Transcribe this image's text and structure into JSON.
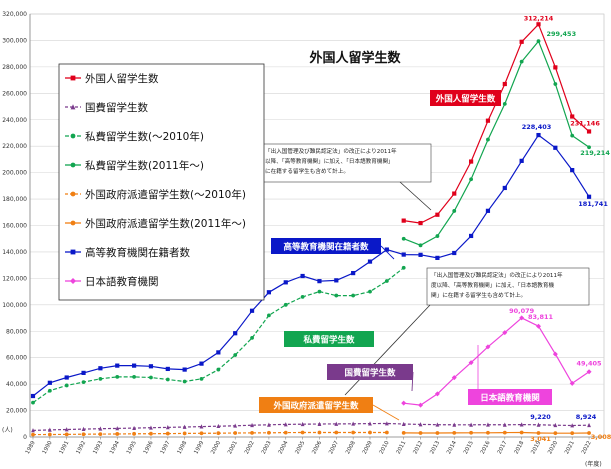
{
  "chart_data": {
    "type": "line",
    "title": "外国人留学生数",
    "y_unit": "(人)",
    "x_unit": "(年度)",
    "ylim": [
      0,
      320000
    ],
    "y_ticks": [
      0,
      20000,
      40000,
      60000,
      80000,
      100000,
      120000,
      140000,
      160000,
      180000,
      200000,
      220000,
      240000,
      260000,
      280000,
      300000,
      320000
    ],
    "y_tick_labels": [
      "0",
      "20,000",
      "40,000",
      "60,000",
      "80,000",
      "100,000",
      "120,000",
      "140,000",
      "160,000",
      "180,000",
      "200,000",
      "220,000",
      "240,000",
      "260,000",
      "280,000",
      "300,000",
      "320,000"
    ],
    "x": [
      1989,
      1990,
      1991,
      1992,
      1993,
      1994,
      1995,
      1996,
      1997,
      1998,
      1999,
      2000,
      2001,
      2002,
      2003,
      2004,
      2005,
      2006,
      2007,
      2008,
      2009,
      2010,
      2011,
      2012,
      2013,
      2014,
      2015,
      2016,
      2017,
      2018,
      2019,
      2020,
      2021,
      2022
    ],
    "x_tick_labels": [
      "1989",
      "1990",
      "1991",
      "1992",
      "1993",
      "1994",
      "1995",
      "1996",
      "1997",
      "1998",
      "1999",
      "2000",
      "2001",
      "2002",
      "2003",
      "2004",
      "2005",
      "2006",
      "2007",
      "2008",
      "2009",
      "2010",
      "2011",
      "2012",
      "2013",
      "2014",
      "2015",
      "2016",
      "2017",
      "2018",
      "2019",
      "2020",
      "2021",
      "2022"
    ],
    "grid": "horizontal",
    "legend_position": "top-left",
    "series": [
      {
        "name": "外国人留学生数",
        "color": "#e0001b",
        "marker": "square",
        "dash": "",
        "points": [
          [
            2011,
            163697
          ],
          [
            2012,
            161848
          ],
          [
            2013,
            168145
          ],
          [
            2014,
            184155
          ],
          [
            2015,
            208379
          ],
          [
            2016,
            239287
          ],
          [
            2017,
            267042
          ],
          [
            2018,
            298980
          ],
          [
            2019,
            312214
          ],
          [
            2020,
            279597
          ],
          [
            2021,
            242444
          ],
          [
            2022,
            231146
          ]
        ]
      },
      {
        "name": "国費留学生数",
        "color": "#7a3a8c",
        "marker": "triangle",
        "dash": "3,2",
        "points": [
          [
            1989,
            5000
          ],
          [
            1990,
            5400
          ],
          [
            1991,
            5700
          ],
          [
            1992,
            6000
          ],
          [
            1993,
            6300
          ],
          [
            1994,
            6500
          ],
          [
            1995,
            6700
          ],
          [
            1996,
            7000
          ],
          [
            1997,
            7300
          ],
          [
            1998,
            7600
          ],
          [
            1999,
            7900
          ],
          [
            2000,
            8200
          ],
          [
            2001,
            8500
          ],
          [
            2002,
            8900
          ],
          [
            2003,
            9200
          ],
          [
            2004,
            9500
          ],
          [
            2005,
            9700
          ],
          [
            2006,
            9800
          ],
          [
            2007,
            9900
          ],
          [
            2008,
            10000
          ],
          [
            2009,
            10100
          ],
          [
            2010,
            10200
          ],
          [
            2011,
            9800
          ],
          [
            2012,
            9500
          ],
          [
            2013,
            9300
          ],
          [
            2014,
            9200
          ],
          [
            2015,
            9200
          ],
          [
            2016,
            9300
          ],
          [
            2017,
            9200
          ],
          [
            2018,
            9400
          ],
          [
            2019,
            9220
          ],
          [
            2020,
            8900
          ],
          [
            2021,
            8700
          ],
          [
            2022,
            8924
          ]
        ]
      },
      {
        "name": "私費留学生数(～2010年)",
        "color": "#12a550",
        "marker": "circle",
        "dash": "4,2",
        "points": [
          [
            1989,
            26000
          ],
          [
            1990,
            35000
          ],
          [
            1991,
            39000
          ],
          [
            1992,
            41500
          ],
          [
            1993,
            44000
          ],
          [
            1994,
            45500
          ],
          [
            1995,
            45500
          ],
          [
            1996,
            45000
          ],
          [
            1997,
            43500
          ],
          [
            1998,
            42000
          ],
          [
            1999,
            44000
          ],
          [
            2000,
            51000
          ],
          [
            2001,
            62000
          ],
          [
            2002,
            75000
          ],
          [
            2003,
            92000
          ],
          [
            2004,
            100000
          ],
          [
            2005,
            106000
          ],
          [
            2006,
            110000
          ],
          [
            2007,
            107000
          ],
          [
            2008,
            107000
          ],
          [
            2009,
            110000
          ],
          [
            2010,
            118000
          ],
          [
            2011,
            128000
          ]
        ]
      },
      {
        "name": "私費留学生数(2011年～)",
        "color": "#12a550",
        "marker": "circle",
        "dash": "",
        "points": [
          [
            2011,
            150000
          ],
          [
            2012,
            145000
          ],
          [
            2013,
            152000
          ],
          [
            2014,
            171000
          ],
          [
            2015,
            195000
          ],
          [
            2016,
            225000
          ],
          [
            2017,
            252000
          ],
          [
            2018,
            284000
          ],
          [
            2019,
            299453
          ],
          [
            2020,
            267000
          ],
          [
            2021,
            228000
          ],
          [
            2022,
            219214
          ]
        ]
      },
      {
        "name": "外国政府派遣留学生数(～2010年)",
        "color": "#f07f13",
        "marker": "circle",
        "dash": "3,2",
        "points": [
          [
            1989,
            1800
          ],
          [
            1990,
            1900
          ],
          [
            1991,
            2000
          ],
          [
            1992,
            2100
          ],
          [
            1993,
            2200
          ],
          [
            1994,
            2300
          ],
          [
            1995,
            2400
          ],
          [
            1996,
            2500
          ],
          [
            1997,
            2600
          ],
          [
            1998,
            2700
          ],
          [
            1999,
            2800
          ],
          [
            2000,
            2900
          ],
          [
            2001,
            3000
          ],
          [
            2002,
            3100
          ],
          [
            2003,
            3200
          ],
          [
            2004,
            3300
          ],
          [
            2005,
            3400
          ],
          [
            2006,
            3400
          ],
          [
            2007,
            3400
          ],
          [
            2008,
            3400
          ],
          [
            2009,
            3400
          ],
          [
            2010,
            3400
          ]
        ]
      },
      {
        "name": "外国政府派遣留学生数(2011年～)",
        "color": "#f07f13",
        "marker": "circle",
        "dash": "",
        "points": [
          [
            2011,
            3100
          ],
          [
            2012,
            3000
          ],
          [
            2013,
            3000
          ],
          [
            2014,
            3100
          ],
          [
            2015,
            3200
          ],
          [
            2016,
            3200
          ],
          [
            2017,
            3300
          ],
          [
            2018,
            3400
          ],
          [
            2019,
            3041
          ],
          [
            2020,
            2900
          ],
          [
            2021,
            2900
          ],
          [
            2022,
            3008
          ]
        ]
      },
      {
        "name": "高等教育機関在籍者数",
        "color": "#0a18c8",
        "marker": "square",
        "dash": "",
        "points": [
          [
            1989,
            31000
          ],
          [
            1990,
            41000
          ],
          [
            1991,
            45000
          ],
          [
            1992,
            48500
          ],
          [
            1993,
            52000
          ],
          [
            1994,
            54000
          ],
          [
            1995,
            54000
          ],
          [
            1996,
            53500
          ],
          [
            1997,
            51500
          ],
          [
            1998,
            51000
          ],
          [
            1999,
            55500
          ],
          [
            2000,
            64000
          ],
          [
            2001,
            78500
          ],
          [
            2002,
            95500
          ],
          [
            2003,
            109500
          ],
          [
            2004,
            117000
          ],
          [
            2005,
            121800
          ],
          [
            2006,
            117900
          ],
          [
            2007,
            118500
          ],
          [
            2008,
            124000
          ],
          [
            2009,
            132700
          ],
          [
            2010,
            141800
          ],
          [
            2011,
            138000
          ],
          [
            2012,
            137800
          ],
          [
            2013,
            135500
          ],
          [
            2014,
            139200
          ],
          [
            2015,
            152100
          ],
          [
            2016,
            171100
          ],
          [
            2017,
            188400
          ],
          [
            2018,
            208900
          ],
          [
            2019,
            228403
          ],
          [
            2020,
            218800
          ],
          [
            2021,
            201900
          ],
          [
            2022,
            181741
          ]
        ]
      },
      {
        "name": "日本語教育機関",
        "color": "#ee44dd",
        "marker": "diamond",
        "dash": "",
        "points": [
          [
            2011,
            25600
          ],
          [
            2012,
            24100
          ],
          [
            2013,
            32600
          ],
          [
            2014,
            44900
          ],
          [
            2015,
            56300
          ],
          [
            2016,
            68200
          ],
          [
            2017,
            79000
          ],
          [
            2018,
            90079
          ],
          [
            2019,
            83811
          ],
          [
            2020,
            62700
          ],
          [
            2021,
            40600
          ],
          [
            2022,
            49405
          ]
        ]
      }
    ],
    "data_labels": [
      {
        "text": "312,214",
        "x": 2019,
        "y": 312214,
        "color": "#e0001b"
      },
      {
        "text": "299,453",
        "x": 2019,
        "y": 299453,
        "color": "#12a550"
      },
      {
        "text": "231,146",
        "x": 2022,
        "y": 231146,
        "color": "#e0001b"
      },
      {
        "text": "228,403",
        "x": 2019,
        "y": 228403,
        "color": "#0a18c8"
      },
      {
        "text": "219,214",
        "x": 2022,
        "y": 219214,
        "color": "#12a550"
      },
      {
        "text": "181,741",
        "x": 2022,
        "y": 181741,
        "color": "#0a18c8"
      },
      {
        "text": "90,079",
        "x": 2018,
        "y": 90079,
        "color": "#ee44dd"
      },
      {
        "text": "83,811",
        "x": 2019,
        "y": 83811,
        "color": "#ee44dd"
      },
      {
        "text": "49,405",
        "x": 2022,
        "y": 49405,
        "color": "#ee44dd"
      },
      {
        "text": "9,220",
        "x": 2019,
        "y": 9220,
        "color": "#0a18c8"
      },
      {
        "text": "8,924",
        "x": 2022,
        "y": 8924,
        "color": "#0a18c8"
      },
      {
        "text": "3,041",
        "x": 2019,
        "y": 3041,
        "color": "#f07f13"
      },
      {
        "text": "3,008",
        "x": 2022,
        "y": 3008,
        "color": "#f07f13"
      }
    ],
    "series_tags": [
      {
        "text": "外国人留学生数",
        "color": "#e0001b"
      },
      {
        "text": "高等教育機関在籍者数",
        "color": "#0a18c8"
      },
      {
        "text": "私費留学生数",
        "color": "#12a550"
      },
      {
        "text": "国費留学生数",
        "color": "#7a3a8c"
      },
      {
        "text": "外国政府派遣留学生数",
        "color": "#f07f13"
      },
      {
        "text": "日本語教育機関",
        "color": "#ee44dd"
      }
    ],
    "annotations": [
      {
        "lines": [
          "「出入国管理及び難民認定法」の改正により2011年",
          "以降、「高等教育機関」に加え、「日本語教育機関」",
          "に在籍する留学生も含めて計上。"
        ]
      },
      {
        "lines": [
          "「出入国管理及び難民認定法」の改正により2011年",
          "度以降、「高等教育機関」に加え、「日本語教育機",
          "関」に在籍する留学生も含めて計上。"
        ]
      }
    ]
  }
}
